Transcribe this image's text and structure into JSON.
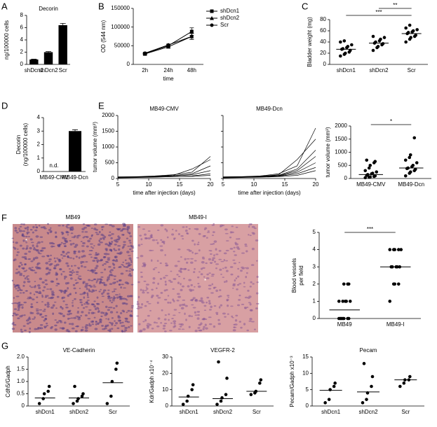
{
  "chart_data": [
    {
      "type": "bar",
      "panel": "A",
      "title": "Decorin",
      "ylabel": "ng/100000 cells",
      "categories": [
        "shDcn1",
        "shDcn2",
        "Scr"
      ],
      "values": [
        0.8,
        2.0,
        6.4
      ],
      "errors": [
        0.05,
        0.1,
        0.3
      ],
      "color": "#000000",
      "ylim": [
        0,
        8
      ],
      "yticks": [
        0,
        2,
        4,
        6,
        8
      ]
    },
    {
      "type": "line",
      "panel": "B",
      "ylabel": "OD (544 nm)",
      "xlabel": "time",
      "categories": [
        "2h",
        "24h",
        "48h"
      ],
      "series": [
        {
          "name": "shDcn1",
          "color": "#000000",
          "marker": "square",
          "values": [
            29000,
            50000,
            88000
          ],
          "errors": [
            1500,
            2500,
            10000
          ]
        },
        {
          "name": "shDcn2",
          "color": "#000000",
          "marker": "triangle",
          "values": [
            28000,
            47000,
            75000
          ],
          "errors": [
            1500,
            2500,
            8000
          ]
        },
        {
          "name": "Scr",
          "color": "#000000",
          "marker": "circle",
          "values": [
            30000,
            52000,
            75000
          ],
          "errors": [
            1500,
            2500,
            8000
          ]
        }
      ],
      "ylim": [
        0,
        150000
      ],
      "yticks": [
        0,
        50000,
        100000,
        150000
      ],
      "legend": "right"
    },
    {
      "type": "dot",
      "panel": "C",
      "ylabel": "Bladder weight (mg)",
      "categories": [
        "shDcn1",
        "shDcn2",
        "Scr"
      ],
      "points": [
        [
          15,
          18,
          20,
          22,
          25,
          27,
          28,
          30,
          32,
          35,
          40,
          42
        ],
        [
          25,
          30,
          32,
          35,
          37,
          38,
          40,
          42,
          45,
          48,
          50
        ],
        [
          40,
          45,
          48,
          50,
          52,
          55,
          57,
          58,
          60,
          62,
          65,
          70
        ]
      ],
      "means": [
        27,
        38,
        55
      ],
      "ylim": [
        0,
        80
      ],
      "yticks": [
        0,
        20,
        40,
        60,
        80
      ],
      "annotations": [
        "***",
        "**"
      ]
    },
    {
      "type": "bar",
      "panel": "D",
      "ylabel": "Decorin\n(ng/100000 cells)",
      "categories": [
        "MB49-CMV",
        "MB49-Dcn"
      ],
      "values": [
        null,
        3.0
      ],
      "errors": [
        null,
        0.1
      ],
      "color": "#000000",
      "ylim": [
        0,
        4
      ],
      "yticks": [
        0,
        1,
        2,
        3,
        4
      ],
      "annotations": [
        "n.d."
      ]
    },
    {
      "type": "line",
      "panel": "E",
      "title": "MB49-CMV",
      "ylabel": "tumor volume (mm³)",
      "xlabel": "time after injection (days)",
      "x": [
        5,
        8,
        11,
        14,
        17,
        20
      ],
      "series": [
        {
          "color": "#000000",
          "values": [
            50,
            60,
            80,
            120,
            200,
            700
          ]
        },
        {
          "color": "#000000",
          "values": [
            40,
            50,
            70,
            100,
            300,
            600
          ]
        },
        {
          "color": "#000000",
          "values": [
            30,
            40,
            60,
            90,
            150,
            400
          ]
        },
        {
          "color": "#000000",
          "values": [
            50,
            50,
            60,
            80,
            120,
            250
          ]
        },
        {
          "color": "#000000",
          "values": [
            20,
            30,
            40,
            60,
            80,
            150
          ]
        },
        {
          "color": "#000000",
          "values": [
            40,
            40,
            50,
            60,
            70,
            100
          ]
        }
      ],
      "xlim": [
        5,
        20
      ],
      "xticks": [
        5,
        10,
        15,
        20
      ],
      "ylim": [
        0,
        2000
      ],
      "yticks": [
        0,
        500,
        1000,
        1500,
        2000
      ]
    },
    {
      "type": "line",
      "title": "MB49-Dcn",
      "xlabel": "time after injection (days)",
      "x": [
        5,
        8,
        11,
        14,
        17,
        20
      ],
      "series": [
        {
          "color": "#000000",
          "values": [
            50,
            60,
            80,
            150,
            400,
            1600
          ]
        },
        {
          "color": "#000000",
          "values": [
            40,
            50,
            70,
            120,
            600,
            1250
          ]
        },
        {
          "color": "#000000",
          "values": [
            30,
            50,
            60,
            100,
            300,
            900
          ]
        },
        {
          "color": "#000000",
          "values": [
            50,
            60,
            70,
            90,
            250,
            700
          ]
        },
        {
          "color": "#000000",
          "values": [
            30,
            40,
            60,
            80,
            200,
            500
          ]
        },
        {
          "color": "#000000",
          "values": [
            40,
            50,
            50,
            70,
            150,
            350
          ]
        },
        {
          "color": "#000000",
          "values": [
            20,
            30,
            40,
            60,
            100,
            250
          ]
        }
      ],
      "xlim": [
        5,
        20
      ],
      "xticks": [
        5,
        10,
        15,
        20
      ],
      "ylim": [
        0,
        2000
      ],
      "yticks": [
        0,
        500,
        1000,
        1500,
        2000
      ],
      "ytick_labels": false
    },
    {
      "type": "dot",
      "ylabel": "tumor volume (mm³)",
      "categories": [
        "MB49-CMV",
        "MB49-Dcn"
      ],
      "points": [
        [
          30,
          50,
          60,
          80,
          100,
          120,
          150,
          180,
          200,
          250,
          300,
          400,
          500,
          600,
          650,
          700
        ],
        [
          100,
          200,
          250,
          300,
          350,
          380,
          400,
          450,
          500,
          600,
          700,
          800,
          900,
          1550
        ]
      ],
      "means": [
        150,
        400
      ],
      "ylim": [
        0,
        2000
      ],
      "yticks": [
        0,
        500,
        1000,
        1500,
        2000
      ],
      "annotations": [
        "*"
      ]
    },
    {
      "type": "dot",
      "panel": "F",
      "ylabel": "Blood vessels\nper field",
      "categories": [
        "MB49",
        "MB49-I"
      ],
      "points": [
        [
          0,
          0,
          0,
          0,
          0,
          0,
          0,
          1,
          1,
          1,
          1,
          1,
          2,
          2,
          2
        ],
        [
          1,
          2,
          2,
          2,
          3,
          3,
          3,
          3,
          3,
          4,
          4,
          4,
          4,
          4
        ]
      ],
      "means": [
        0.5,
        3
      ],
      "ylim": [
        0,
        5
      ],
      "yticks": [
        0,
        1,
        2,
        3,
        4,
        5
      ],
      "annotations": [
        "***"
      ]
    },
    {
      "type": "dot",
      "panel": "G",
      "title": "VE-Cadherin",
      "ylabel": "Cdh5/Gadph",
      "categories": [
        "shDcn1",
        "shDcn2",
        "Scr"
      ],
      "points": [
        [
          0.1,
          0.3,
          0.5,
          0.6,
          0.8
        ],
        [
          0.1,
          0.2,
          0.3,
          0.4,
          0.5,
          0.8
        ],
        [
          0.1,
          0.4,
          1.0,
          1.5,
          1.75
        ]
      ],
      "means": [
        0.33,
        0.33,
        0.95
      ],
      "ylim": [
        0,
        2
      ],
      "yticks": [
        0,
        0.5,
        {
          "value": 1,
          "label": "1.0"
        },
        1.5,
        {
          "value": 2,
          "label": "2.0"
        }
      ]
    },
    {
      "type": "dot",
      "title": "VEGFR-2",
      "ylabel": "Kdr/Gadph x10⁻⁴",
      "categories": [
        "shDcn1",
        "shDcn2",
        "Scr"
      ],
      "points": [
        [
          1,
          3,
          6,
          10,
          13
        ],
        [
          1,
          3,
          5,
          7,
          17,
          27
        ],
        [
          7,
          8,
          9,
          14,
          16
        ]
      ],
      "means": [
        5.5,
        4.5,
        9
      ],
      "ylim": [
        0,
        30
      ],
      "yticks": [
        0,
        10,
        20,
        30
      ]
    },
    {
      "type": "dot",
      "title": "Pecam",
      "ylabel": "Pecam/Gadph x10⁻³",
      "categories": [
        "shDcn1",
        "shDcn2",
        "Scr"
      ],
      "points": [
        [
          1,
          2,
          5,
          6,
          7
        ],
        [
          1,
          2,
          4,
          6,
          9,
          13
        ],
        [
          6,
          7,
          8,
          8,
          9
        ]
      ],
      "means": [
        4.8,
        4.3,
        8
      ],
      "ylim": [
        0,
        15
      ],
      "yticks": [
        0,
        5,
        10,
        15
      ]
    }
  ],
  "images": [
    {
      "label": "MB49",
      "mark": "*"
    },
    {
      "label": "MB49-I",
      "mark": "*"
    }
  ]
}
